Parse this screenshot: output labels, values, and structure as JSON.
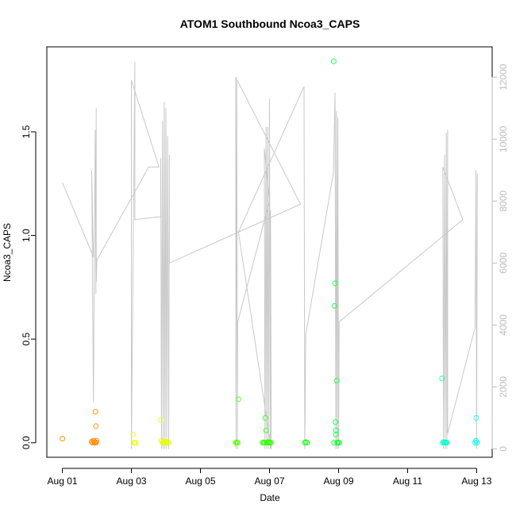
{
  "chart_data": {
    "type": "scatter",
    "title": "ATOM1 Southbound Ncoa3_CAPS",
    "xlabel": "Date",
    "ylabel": "Ncoa3_CAPS",
    "x_ticks": [
      {
        "day": 1,
        "label": "Aug 01"
      },
      {
        "day": 3,
        "label": "Aug 03"
      },
      {
        "day": 5,
        "label": "Aug 05"
      },
      {
        "day": 7,
        "label": "Aug 07"
      },
      {
        "day": 9,
        "label": "Aug 09"
      },
      {
        "day": 11,
        "label": "Aug 11"
      },
      {
        "day": 13,
        "label": "Aug 13"
      }
    ],
    "xlim_days": [
      0.55,
      13.45
    ],
    "y_ticks": [
      {
        "v": 0.0,
        "label": "0.0"
      },
      {
        "v": 0.5,
        "label": "0.5"
      },
      {
        "v": 1.0,
        "label": "1.0"
      },
      {
        "v": 1.5,
        "label": "1.5"
      }
    ],
    "ylim": [
      -0.07,
      1.91
    ],
    "y2_ticks": [
      {
        "v": 0,
        "label": "0"
      },
      {
        "v": 2000,
        "label": "2000"
      },
      {
        "v": 4000,
        "label": "4000"
      },
      {
        "v": 6000,
        "label": "6000"
      },
      {
        "v": 8000,
        "label": "8000"
      },
      {
        "v": 10000,
        "label": "10000"
      },
      {
        "v": 12000,
        "label": "12000"
      }
    ],
    "y2lim": [
      -270,
      12980
    ],
    "y2_color": "#bdbdbd",
    "series_line_color": "#c8c8c8",
    "points": [
      {
        "x": 1.0,
        "y": 0.02,
        "color": "#ff9900"
      },
      {
        "x": 1.85,
        "y": 0.005,
        "color": "#ff8800"
      },
      {
        "x": 1.88,
        "y": 0.0,
        "color": "#ff8800"
      },
      {
        "x": 1.9,
        "y": 0.01,
        "color": "#ff8800"
      },
      {
        "x": 1.93,
        "y": 0.003,
        "color": "#ff8800"
      },
      {
        "x": 1.95,
        "y": 0.0,
        "color": "#ff8800"
      },
      {
        "x": 1.98,
        "y": 0.002,
        "color": "#ff8800"
      },
      {
        "x": 1.96,
        "y": 0.15,
        "color": "#ff9500"
      },
      {
        "x": 1.97,
        "y": 0.08,
        "color": "#ff9500"
      },
      {
        "x": 1.99,
        "y": 0.01,
        "color": "#ff9500"
      },
      {
        "x": 3.05,
        "y": 0.04,
        "color": "#ffee33"
      },
      {
        "x": 3.08,
        "y": 0.0,
        "color": "#f0ff00"
      },
      {
        "x": 3.1,
        "y": 0.002,
        "color": "#f0ff00"
      },
      {
        "x": 3.12,
        "y": 0.0,
        "color": "#f0ff00"
      },
      {
        "x": 3.85,
        "y": 0.11,
        "color": "#eeff22"
      },
      {
        "x": 3.87,
        "y": 0.01,
        "color": "#e5ff00"
      },
      {
        "x": 3.9,
        "y": 0.0,
        "color": "#e5ff00"
      },
      {
        "x": 3.93,
        "y": 0.005,
        "color": "#e5ff00"
      },
      {
        "x": 3.96,
        "y": 0.0,
        "color": "#e5ff00"
      },
      {
        "x": 3.99,
        "y": 0.003,
        "color": "#e5ff00"
      },
      {
        "x": 4.02,
        "y": 0.0,
        "color": "#e5ff00"
      },
      {
        "x": 4.05,
        "y": 0.004,
        "color": "#e5ff00"
      },
      {
        "x": 4.08,
        "y": 0.0,
        "color": "#e5ff00"
      },
      {
        "x": 6.02,
        "y": 0.0,
        "color": "#55ff00"
      },
      {
        "x": 6.05,
        "y": 0.002,
        "color": "#55ff00"
      },
      {
        "x": 6.08,
        "y": 0.0,
        "color": "#55ff00"
      },
      {
        "x": 6.1,
        "y": 0.21,
        "color": "#66ff22"
      },
      {
        "x": 6.8,
        "y": 0.0,
        "color": "#33ff00"
      },
      {
        "x": 6.83,
        "y": 0.002,
        "color": "#33ff00"
      },
      {
        "x": 6.86,
        "y": 0.0,
        "color": "#33ff00"
      },
      {
        "x": 6.88,
        "y": 0.12,
        "color": "#44ff22"
      },
      {
        "x": 6.9,
        "y": 0.06,
        "color": "#44ff22"
      },
      {
        "x": 6.92,
        "y": 0.0,
        "color": "#33ff00"
      },
      {
        "x": 6.95,
        "y": 0.003,
        "color": "#33ff00"
      },
      {
        "x": 6.98,
        "y": 0.0,
        "color": "#33ff00"
      },
      {
        "x": 7.01,
        "y": 0.002,
        "color": "#33ff00"
      },
      {
        "x": 7.04,
        "y": 0.0,
        "color": "#33ff00"
      },
      {
        "x": 8.02,
        "y": 0.0,
        "color": "#22ff22"
      },
      {
        "x": 8.05,
        "y": 0.003,
        "color": "#22ff22"
      },
      {
        "x": 8.09,
        "y": 0.0,
        "color": "#22ff22"
      },
      {
        "x": 8.86,
        "y": 1.84,
        "color": "#22ff55"
      },
      {
        "x": 8.87,
        "y": 0.0,
        "color": "#11ff33"
      },
      {
        "x": 8.88,
        "y": 0.66,
        "color": "#22ff55"
      },
      {
        "x": 8.9,
        "y": 0.77,
        "color": "#22ff55"
      },
      {
        "x": 8.91,
        "y": 0.1,
        "color": "#22ff55"
      },
      {
        "x": 8.92,
        "y": 0.04,
        "color": "#22ff55"
      },
      {
        "x": 8.93,
        "y": 0.06,
        "color": "#22ff55"
      },
      {
        "x": 8.95,
        "y": 0.3,
        "color": "#22ff55"
      },
      {
        "x": 8.96,
        "y": 0.0,
        "color": "#11ff33"
      },
      {
        "x": 8.99,
        "y": 0.002,
        "color": "#11ff33"
      },
      {
        "x": 9.02,
        "y": 0.0,
        "color": "#11ff33"
      },
      {
        "x": 12.0,
        "y": 0.31,
        "color": "#22ffaa"
      },
      {
        "x": 12.02,
        "y": 0.0,
        "color": "#00ffcc"
      },
      {
        "x": 12.05,
        "y": 0.003,
        "color": "#00ffcc"
      },
      {
        "x": 12.08,
        "y": 0.0,
        "color": "#00ffcc"
      },
      {
        "x": 12.11,
        "y": 0.002,
        "color": "#00ffcc"
      },
      {
        "x": 12.14,
        "y": 0.0,
        "color": "#00ffcc"
      },
      {
        "x": 12.96,
        "y": 0.0,
        "color": "#00ffee"
      },
      {
        "x": 12.98,
        "y": 0.01,
        "color": "#00ffee"
      },
      {
        "x": 12.99,
        "y": 0.12,
        "color": "#22ffee"
      },
      {
        "x": 13.01,
        "y": 0.0,
        "color": "#00ffee"
      }
    ],
    "depth_line": [
      [
        1.0,
        8600
      ],
      [
        1.9,
        6200
      ],
      [
        1.85,
        9000
      ],
      [
        1.9,
        1500
      ],
      [
        1.95,
        10300
      ],
      [
        1.97,
        5000
      ],
      [
        1.98,
        11000
      ],
      [
        1.98,
        5400
      ],
      [
        2.0,
        6100
      ],
      [
        3.5,
        9100
      ],
      [
        3.8,
        9100
      ],
      [
        3.0,
        11900
      ],
      [
        3.0,
        0
      ],
      [
        3.1,
        12500
      ],
      [
        3.1,
        7400
      ],
      [
        3.85,
        7500
      ],
      [
        3.85,
        9400
      ],
      [
        3.87,
        0
      ],
      [
        3.9,
        10600
      ],
      [
        3.92,
        0
      ],
      [
        3.95,
        11200
      ],
      [
        3.97,
        0
      ],
      [
        4.0,
        11000
      ],
      [
        4.02,
        0
      ],
      [
        4.05,
        10100
      ],
      [
        4.08,
        0
      ],
      [
        4.1,
        9500
      ],
      [
        4.1,
        6000
      ],
      [
        7.9,
        7900
      ],
      [
        6.02,
        12000
      ],
      [
        6.03,
        0
      ],
      [
        6.05,
        11900
      ],
      [
        6.07,
        0
      ],
      [
        6.08,
        4100
      ],
      [
        7.0,
        8000
      ],
      [
        6.85,
        9700
      ],
      [
        6.87,
        0
      ],
      [
        6.9,
        10400
      ],
      [
        6.92,
        0
      ],
      [
        6.95,
        10400
      ],
      [
        6.97,
        0
      ],
      [
        7.0,
        11300
      ],
      [
        7.02,
        0
      ],
      [
        7.03,
        7700
      ],
      [
        7.05,
        0
      ],
      [
        6.1,
        7000
      ],
      [
        8.0,
        11700
      ],
      [
        8.02,
        0
      ],
      [
        8.05,
        3700
      ],
      [
        8.85,
        8900
      ],
      [
        8.9,
        11500
      ],
      [
        8.92,
        0
      ],
      [
        8.94,
        10900
      ],
      [
        8.96,
        0
      ],
      [
        8.98,
        10700
      ],
      [
        9.0,
        0
      ],
      [
        9.02,
        4100
      ],
      [
        12.6,
        7400
      ],
      [
        12.02,
        9100
      ],
      [
        12.04,
        0
      ],
      [
        12.07,
        9500
      ],
      [
        12.09,
        0
      ],
      [
        12.12,
        10200
      ],
      [
        12.14,
        0
      ],
      [
        12.16,
        10300
      ],
      [
        12.16,
        500
      ],
      [
        12.95,
        3900
      ],
      [
        12.98,
        9000
      ],
      [
        13.0,
        0
      ],
      [
        13.02,
        8900
      ]
    ]
  }
}
